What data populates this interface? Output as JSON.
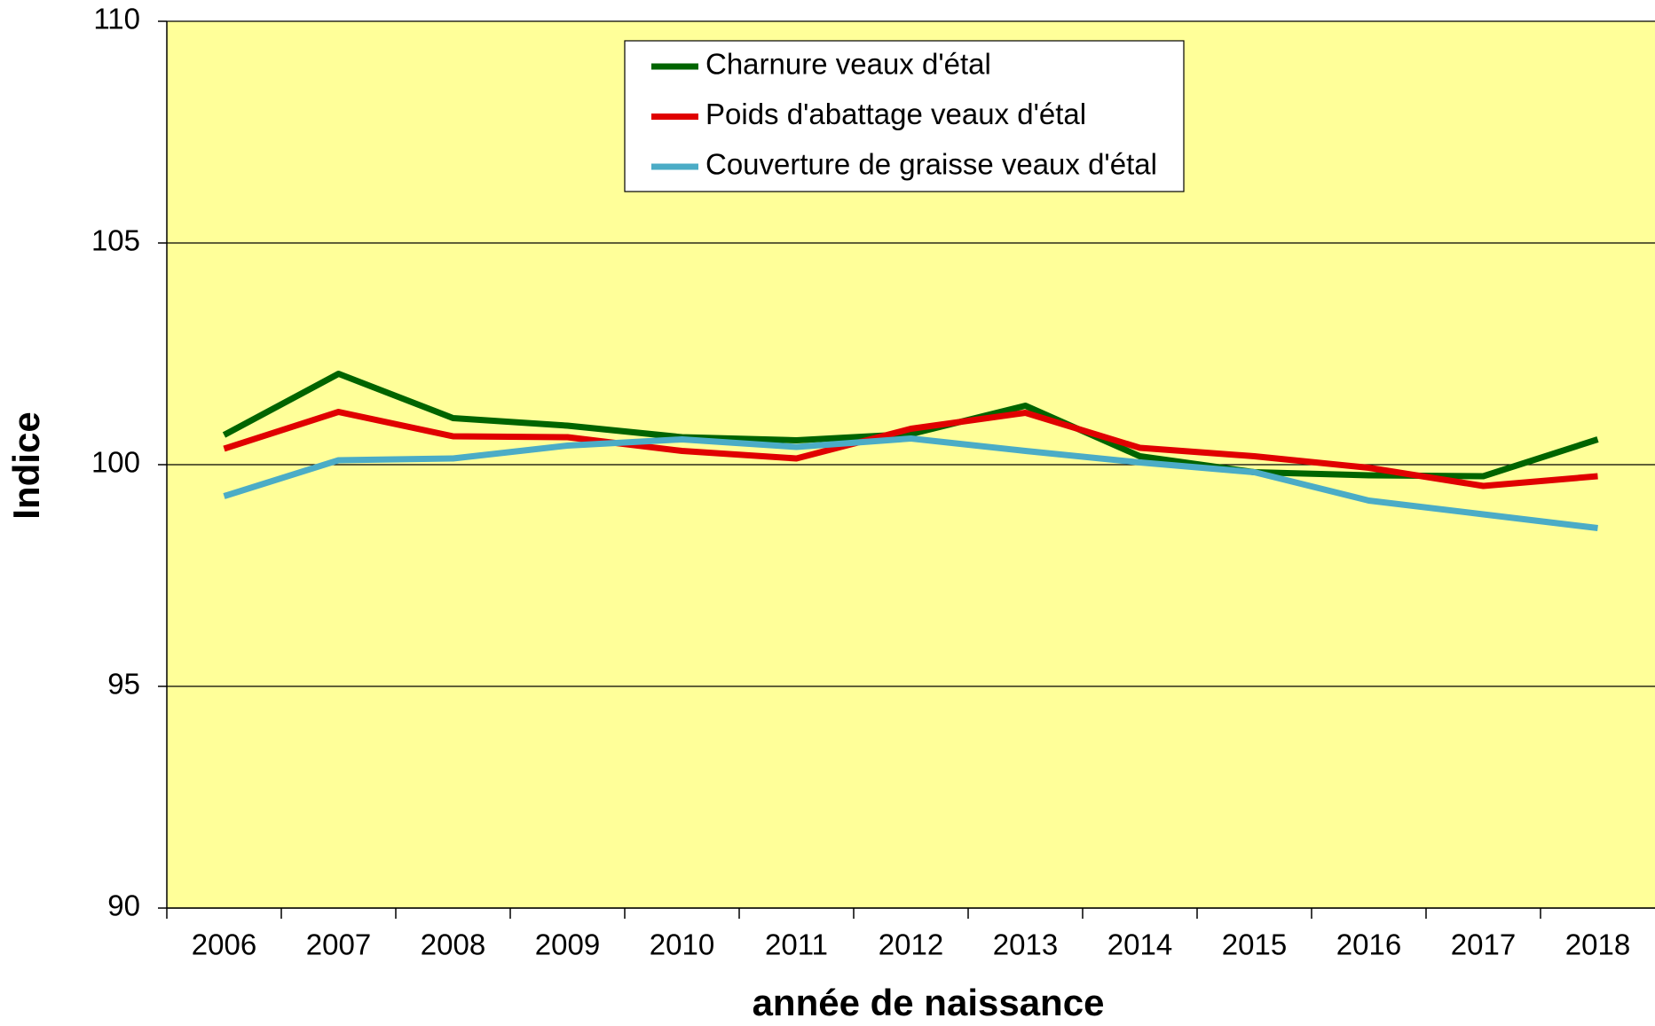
{
  "chart_data": {
    "type": "line",
    "x_label": "année de naissance",
    "y_label": "Indice",
    "categories": [
      "2006",
      "2007",
      "2008",
      "2009",
      "2010",
      "2011",
      "2012",
      "2013",
      "2014",
      "2015",
      "2016",
      "2017",
      "2018"
    ],
    "series": [
      {
        "name": "Charnure veaux d'étal",
        "color": "#006400",
        "values": [
          100.67,
          102.05,
          101.05,
          100.88,
          100.62,
          100.55,
          100.69,
          101.33,
          100.19,
          99.83,
          99.76,
          99.74,
          100.57
        ]
      },
      {
        "name": "Poids d'abattage veaux d'étal",
        "color": "#e00000",
        "values": [
          100.36,
          101.19,
          100.64,
          100.62,
          100.31,
          100.14,
          100.81,
          101.17,
          100.38,
          100.19,
          99.93,
          99.52,
          99.74
        ]
      },
      {
        "name": "Couverture de graisse veaux d'étal",
        "color": "#4bacc6",
        "values": [
          99.29,
          100.1,
          100.14,
          100.43,
          100.57,
          100.4,
          100.59,
          100.31,
          100.05,
          99.83,
          99.19,
          98.88,
          98.57
        ]
      }
    ],
    "ylim": [
      90,
      110
    ],
    "yticks": [
      90,
      95,
      100,
      105,
      110
    ],
    "grid": true,
    "legend": "top",
    "background": "#ffff99"
  }
}
